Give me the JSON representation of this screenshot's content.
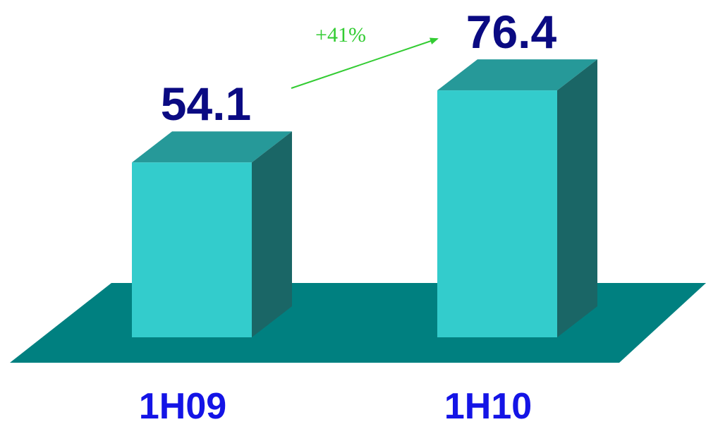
{
  "chart_data": {
    "type": "bar",
    "style": "3d",
    "categories": [
      "1H09",
      "1H10"
    ],
    "values": [
      54.1,
      76.4
    ],
    "value_labels": [
      "54.1",
      "76.4"
    ],
    "annotation": "+41%",
    "legend": "none",
    "grid": false,
    "colors": {
      "bar_front": "#33cccc",
      "bar_top": "#269999",
      "bar_side": "#1a6666",
      "floor": "#008080",
      "value_text": "#0a0a82",
      "category_text": "#1414e6",
      "annotation": "#33cc33"
    }
  }
}
